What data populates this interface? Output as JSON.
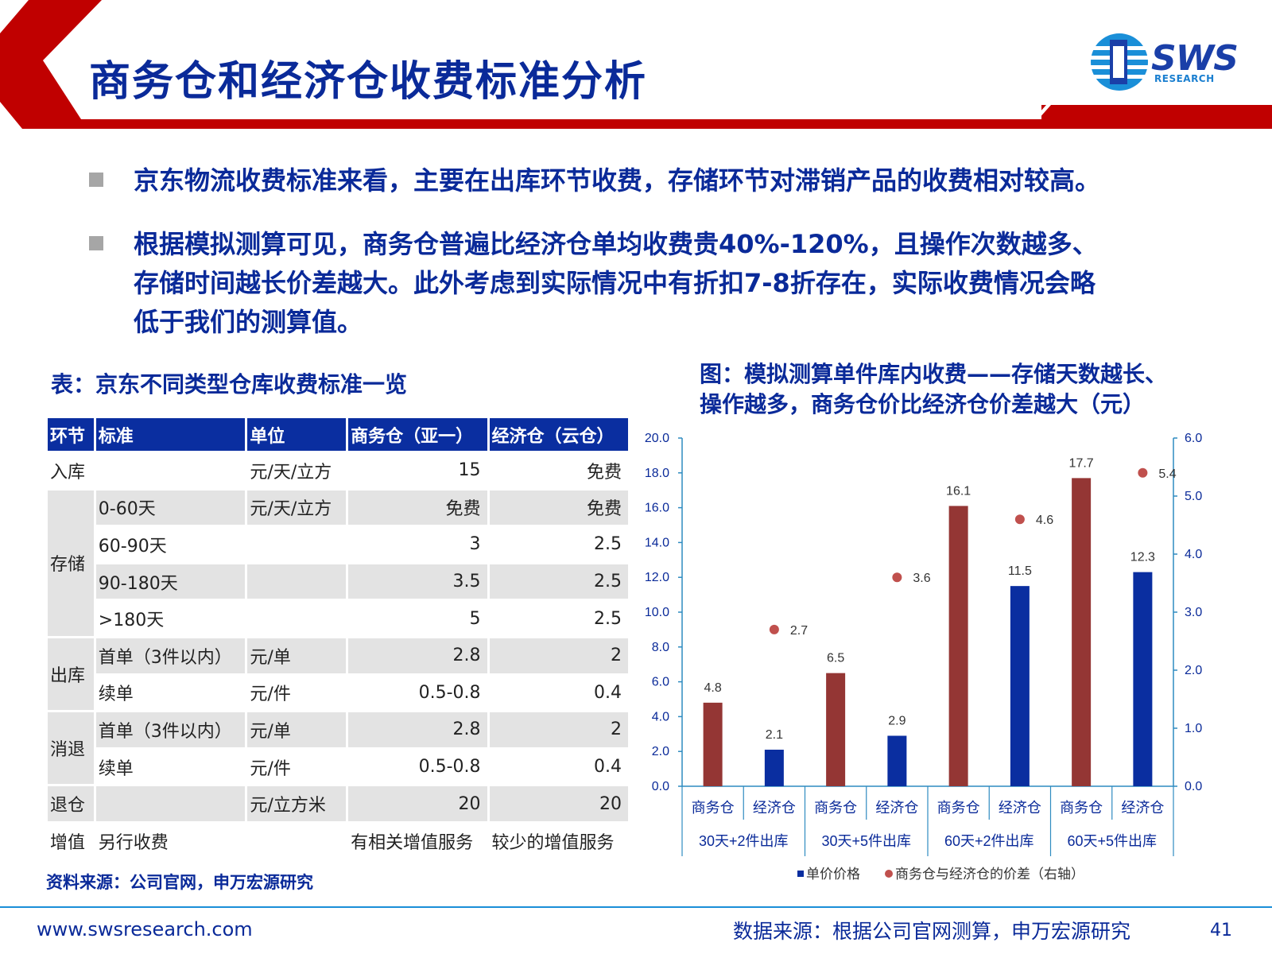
{
  "header": {
    "title": "商务仓和经济仓收费标准分析",
    "logo_text": "SWS",
    "logo_sub": "RESEARCH"
  },
  "bullets": [
    "京东物流收费标准来看，主要在出库环节收费，存储环节对滞销产品的收费相对较高。",
    "根据模拟测算可见，商务仓普遍比经济仓单均收费贵40%-120%，且操作次数越多、",
    "存储时间越长价差越大。此外考虑到实际情况中有折扣7-8折存在，实际收费情况会略",
    "低于我们的测算值。"
  ],
  "table": {
    "title": "表：京东不同类型仓库收费标准一览",
    "headers": [
      "环节",
      "标准",
      "单位",
      "商务仓（亚一）",
      "经济仓（云仓）"
    ],
    "groups": {
      "inbound": "入库",
      "storage": "存储",
      "outbound": "出库",
      "returns": "消退",
      "exit": "退仓",
      "value_added": "增值"
    },
    "rows": [
      {
        "std": "",
        "unit": "元/天/立方",
        "biz": "15",
        "eco": "免费"
      },
      {
        "std": "0-60天",
        "unit": "元/天/立方",
        "biz": "免费",
        "eco": "免费"
      },
      {
        "std": "60-90天",
        "unit": "",
        "biz": "3",
        "eco": "2.5"
      },
      {
        "std": "90-180天",
        "unit": "",
        "biz": "3.5",
        "eco": "2.5"
      },
      {
        "std": ">180天",
        "unit": "",
        "biz": "5",
        "eco": "2.5"
      },
      {
        "std": "首单（3件以内）",
        "unit": "元/单",
        "biz": "2.8",
        "eco": "2"
      },
      {
        "std": "续单",
        "unit": "元/件",
        "biz": "0.5-0.8",
        "eco": "0.4"
      },
      {
        "std": "首单（3件以内）",
        "unit": "元/单",
        "biz": "2.8",
        "eco": "2"
      },
      {
        "std": "续单",
        "unit": "元/件",
        "biz": "0.5-0.8",
        "eco": "0.4"
      },
      {
        "std": "",
        "unit": "元/立方米",
        "biz": "20",
        "eco": "20"
      },
      {
        "std": "另行收费",
        "unit": "",
        "biz": "有相关增值服务",
        "eco": "较少的增值服务"
      }
    ],
    "source": "资料来源：公司官网，申万宏源研究"
  },
  "chart_title_lines": [
    "图：模拟测算单件库内收费——存储天数越长、",
    "操作越多，商务仓价比经济仓价差越大（元）"
  ],
  "chart_data": {
    "type": "bar",
    "categories": [
      "商务仓",
      "经济仓",
      "商务仓",
      "经济仓",
      "商务仓",
      "经济仓",
      "商务仓",
      "经济仓"
    ],
    "groups": [
      "30天+2件出库",
      "30天+5件出库",
      "60天+2件出库",
      "60天+5件出库"
    ],
    "series": [
      {
        "name": "单价价格",
        "values": [
          4.8,
          2.1,
          6.5,
          2.9,
          16.1,
          11.5,
          17.7,
          12.3
        ],
        "colors": [
          "#943634",
          "#0a2ea0"
        ]
      },
      {
        "name": "商务仓与经济仓的价差（右轴）",
        "type": "scatter",
        "axis": "right",
        "values": [
          2.7,
          3.6,
          4.6,
          5.4
        ],
        "color": "#c0504d"
      }
    ],
    "ylim": [
      0,
      20
    ],
    "y_ticks": [
      "0.0",
      "2.0",
      "4.0",
      "6.0",
      "8.0",
      "10.0",
      "12.0",
      "14.0",
      "16.0",
      "18.0",
      "20.0"
    ],
    "y2lim": [
      0,
      6
    ],
    "y2_ticks": [
      "0.0",
      "1.0",
      "2.0",
      "3.0",
      "4.0",
      "5.0",
      "6.0"
    ],
    "legend_position": "bottom",
    "grid": false
  },
  "footer": {
    "url": "www.swsresearch.com",
    "data_source": "数据来源：根据公司官网测算，申万宏源研究",
    "page": "41"
  },
  "colors": {
    "title_blue": "#0a2a99",
    "header_red": "#c00000",
    "bar_biz": "#943634",
    "bar_eco": "#0a2ea0",
    "diff_dot": "#c0504d"
  }
}
